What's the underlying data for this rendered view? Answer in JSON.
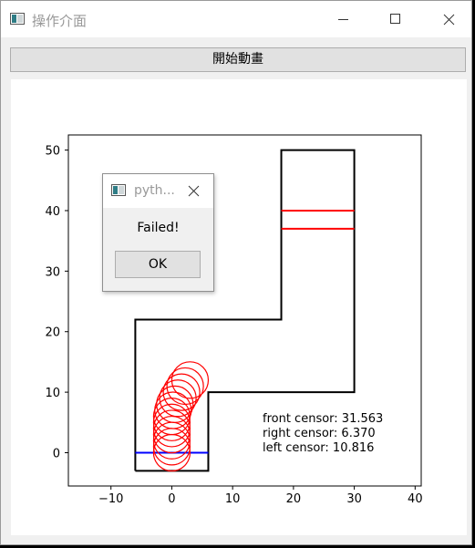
{
  "window": {
    "title": "操作介面",
    "start_button_label": "開始動畫"
  },
  "dialog": {
    "title": "pyth...",
    "message": "Failed!",
    "ok_label": "OK"
  },
  "sensors": {
    "front": "front censor: 31.563",
    "right": "right censor: 6.370",
    "left": "left censor: 10.816"
  },
  "colors": {
    "track": "#000000",
    "car": "#ff0000",
    "finish_line": "#ff0000",
    "start_line": "#0000ff"
  },
  "chart_data": {
    "type": "line",
    "xlim": [
      -17,
      41
    ],
    "ylim": [
      -5.5,
      52.5
    ],
    "xticks": [
      -10,
      0,
      10,
      20,
      30,
      40
    ],
    "yticks": [
      0,
      10,
      20,
      30,
      40,
      50
    ],
    "grid": false,
    "track_boundary": [
      [
        -6,
        -3
      ],
      [
        6,
        -3
      ],
      [
        6,
        10
      ],
      [
        30,
        10
      ],
      [
        30,
        50
      ],
      [
        18,
        50
      ],
      [
        18,
        22
      ],
      [
        -6,
        22
      ],
      [
        -6,
        -3
      ]
    ],
    "finish_lines": [
      {
        "x": [
          18,
          30
        ],
        "y": [
          40,
          40
        ]
      },
      {
        "x": [
          18,
          30
        ],
        "y": [
          37,
          37
        ]
      }
    ],
    "start_line": {
      "x": [
        -6,
        6
      ],
      "y": [
        0,
        0
      ]
    },
    "car_radius": 3,
    "car_positions": [
      [
        0,
        0
      ],
      [
        0,
        1
      ],
      [
        0,
        2
      ],
      [
        0,
        3
      ],
      [
        0,
        4
      ],
      [
        0,
        5
      ],
      [
        0,
        6
      ],
      [
        0.2,
        7
      ],
      [
        0.5,
        8
      ],
      [
        1,
        9
      ],
      [
        1.6,
        10
      ],
      [
        2.2,
        11
      ],
      [
        3,
        12
      ]
    ]
  }
}
